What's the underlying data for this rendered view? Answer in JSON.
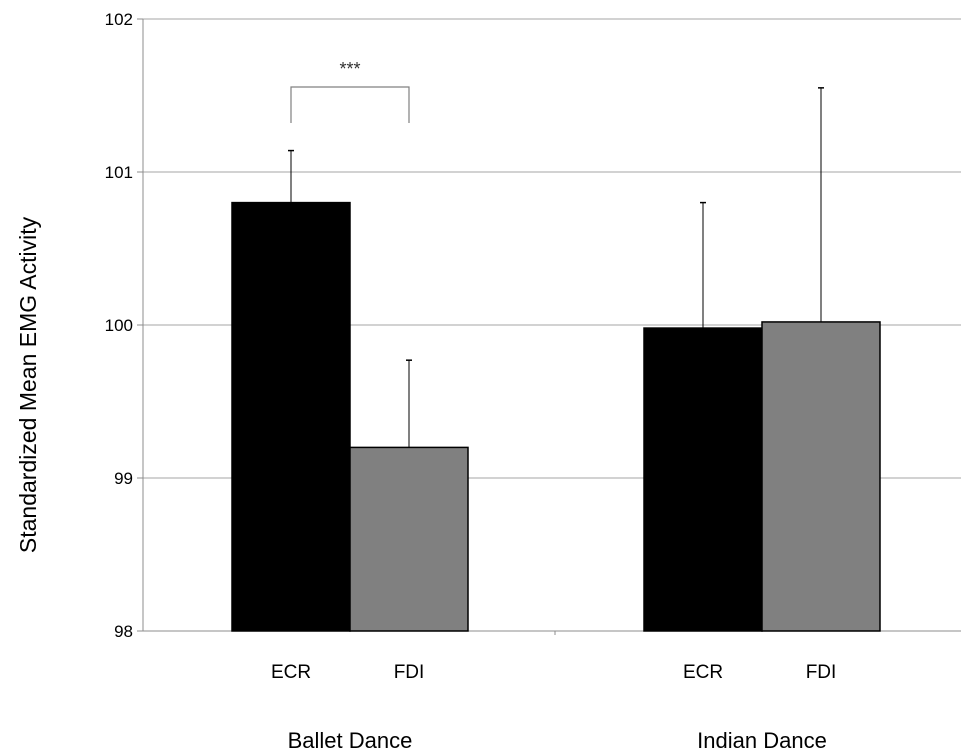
{
  "chart_data": {
    "type": "bar",
    "title": "",
    "xlabel": "",
    "ylabel": "Standardized Mean EMG Activity",
    "ylim": [
      98,
      102
    ],
    "yticks": [
      "98",
      "99",
      "100",
      "101",
      "102"
    ],
    "grid": true,
    "legend": "none",
    "groups": [
      {
        "label": "Ballet Dance",
        "bars": [
          {
            "category": "ECR",
            "value": 100.8,
            "error": 0.34,
            "color": "#000000"
          },
          {
            "category": "FDI",
            "value": 99.2,
            "error": 0.57,
            "color": "#808080"
          }
        ],
        "significance": "***"
      },
      {
        "label": "Indian Dance",
        "bars": [
          {
            "category": "ECR",
            "value": 99.98,
            "error": 0.82,
            "color": "#000000"
          },
          {
            "category": "FDI",
            "value": 100.02,
            "error": 1.53,
            "color": "#808080"
          }
        ]
      }
    ]
  }
}
